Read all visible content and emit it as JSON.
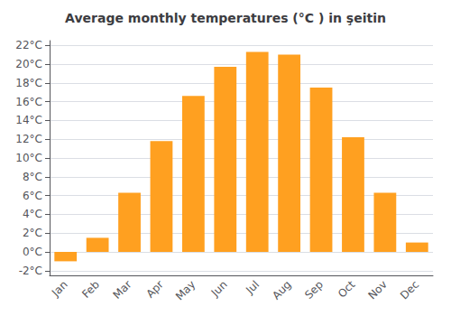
{
  "chart_data": {
    "type": "bar",
    "title": "Average monthly temperatures (°C ) in şeitin",
    "categories": [
      "Jan",
      "Feb",
      "Mar",
      "Apr",
      "May",
      "Jun",
      "Jul",
      "Aug",
      "Sep",
      "Oct",
      "Nov",
      "Dec"
    ],
    "values": [
      -1.0,
      1.5,
      6.3,
      11.8,
      16.6,
      19.7,
      21.3,
      21.0,
      17.5,
      12.2,
      6.3,
      1.0
    ],
    "color": "#FFA020",
    "ylim": [
      -2.5,
      22.5
    ],
    "yticks": [
      {
        "value": -2,
        "label": "-2°C"
      },
      {
        "value": 0,
        "label": "0°C"
      },
      {
        "value": 2,
        "label": "2°C"
      },
      {
        "value": 4,
        "label": "4°C"
      },
      {
        "value": 6,
        "label": "6°C"
      },
      {
        "value": 8,
        "label": "8°C"
      },
      {
        "value": 10,
        "label": "10°C"
      },
      {
        "value": 12,
        "label": "12°C"
      },
      {
        "value": 14,
        "label": "14°C"
      },
      {
        "value": 16,
        "label": "16°C"
      },
      {
        "value": 18,
        "label": "18°C"
      },
      {
        "value": 20,
        "label": "20°C"
      },
      {
        "value": 22,
        "label": "22°C"
      }
    ],
    "grid": true
  }
}
